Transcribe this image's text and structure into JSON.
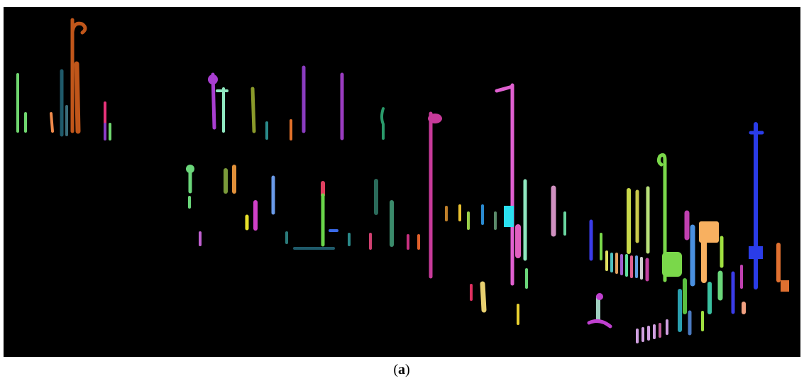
{
  "figure": {
    "caption": "(a)"
  }
}
